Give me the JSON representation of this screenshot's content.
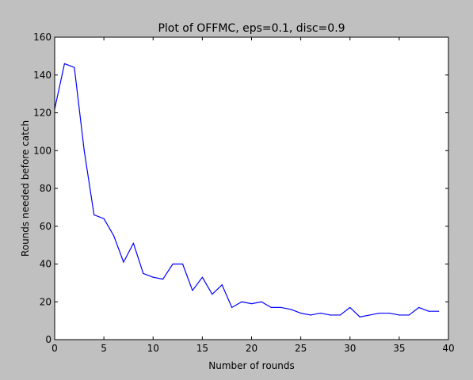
{
  "chart_data": {
    "type": "line",
    "title": "Plot of OFFMC, eps=0.1, disc=0.9",
    "xlabel": "Number of rounds",
    "ylabel": "Rounds needed before catch",
    "xlim": [
      0,
      40
    ],
    "ylim": [
      0,
      160
    ],
    "xticks": [
      "0",
      "5",
      "10",
      "15",
      "20",
      "25",
      "30",
      "35",
      "40"
    ],
    "yticks": [
      "0",
      "20",
      "40",
      "60",
      "80",
      "100",
      "120",
      "140",
      "160"
    ],
    "grid": false,
    "series": [
      {
        "color": "#0000ff",
        "x": [
          0,
          1,
          2,
          3,
          4,
          5,
          6,
          7,
          8,
          9,
          10,
          11,
          12,
          13,
          14,
          15,
          16,
          17,
          18,
          19,
          20,
          21,
          22,
          23,
          24,
          25,
          26,
          27,
          28,
          29,
          30,
          31,
          32,
          33,
          34,
          35,
          36,
          37,
          38,
          39
        ],
        "y": [
          122,
          146,
          144,
          100,
          66,
          64,
          55,
          41,
          51,
          35,
          33,
          32,
          40,
          40,
          26,
          33,
          24,
          29,
          17,
          20,
          19,
          20,
          17,
          17,
          16,
          14,
          13,
          14,
          13,
          13,
          17,
          12,
          13,
          14,
          14,
          13,
          13,
          17,
          15,
          15
        ]
      }
    ]
  },
  "colors": {
    "figure_background": "#c0c0c0",
    "axes_background": "#ffffff",
    "line": "#0000ff"
  }
}
